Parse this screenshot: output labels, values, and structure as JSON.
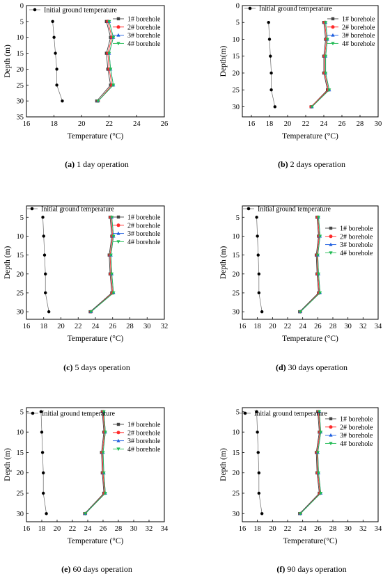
{
  "chart_data": [
    {
      "type": "line",
      "caption_label": "(a)",
      "caption_text": "1 day operation",
      "xlabel": "Temperature (°C)",
      "ylabel": "Depth (m)",
      "xlim": [
        16,
        26
      ],
      "ylim": [
        35,
        0
      ],
      "xticks": [
        16,
        18,
        20,
        22,
        24,
        26
      ],
      "yticks": [
        0,
        5,
        10,
        15,
        20,
        25,
        30,
        35
      ],
      "depths": [
        5,
        10,
        15,
        20,
        25,
        30
      ],
      "series": [
        {
          "name": "Initial ground temperature",
          "values": [
            17.9,
            18.0,
            18.1,
            18.2,
            18.2,
            18.6
          ]
        },
        {
          "name": "1# borehole",
          "values": [
            21.8,
            22.1,
            21.8,
            21.9,
            22.1,
            21.1
          ]
        },
        {
          "name": "2# borehole",
          "values": [
            21.9,
            22.2,
            21.9,
            22.0,
            22.2,
            21.2
          ]
        },
        {
          "name": "3# borehole",
          "values": [
            22.0,
            22.3,
            22.0,
            22.1,
            22.3,
            21.2
          ]
        },
        {
          "name": "4# borehole",
          "values": [
            22.0,
            22.3,
            22.0,
            22.1,
            22.3,
            21.2
          ]
        }
      ]
    },
    {
      "type": "line",
      "caption_label": "(b)",
      "caption_text": "2 days operation",
      "xlabel": "Temperature (°C)",
      "ylabel": "Depth(m)",
      "xlim": [
        15,
        30
      ],
      "ylim": [
        33,
        0
      ],
      "xticks": [
        16,
        18,
        20,
        22,
        24,
        26,
        28,
        30
      ],
      "yticks": [
        0,
        5,
        10,
        15,
        20,
        25,
        30
      ],
      "depths": [
        5,
        10,
        15,
        20,
        25,
        30
      ],
      "series": [
        {
          "name": "Initial ground temperature",
          "values": [
            17.9,
            18.0,
            18.1,
            18.2,
            18.2,
            18.6
          ]
        },
        {
          "name": "1# borehole",
          "values": [
            24.0,
            24.2,
            24.0,
            24.0,
            24.4,
            22.6
          ]
        },
        {
          "name": "2# borehole",
          "values": [
            24.1,
            24.3,
            24.1,
            24.1,
            24.5,
            22.6
          ]
        },
        {
          "name": "3# borehole",
          "values": [
            24.2,
            24.4,
            24.2,
            24.2,
            24.6,
            22.7
          ]
        },
        {
          "name": "4# borehole",
          "values": [
            24.2,
            24.4,
            24.2,
            24.2,
            24.6,
            22.7
          ]
        }
      ]
    },
    {
      "type": "line",
      "caption_label": "(c)",
      "caption_text": "5 days operation",
      "xlabel": "Temperature (°C)",
      "ylabel": "Depth (m)",
      "xlim": [
        16,
        32
      ],
      "ylim": [
        32,
        2
      ],
      "xticks": [
        16,
        18,
        20,
        22,
        24,
        26,
        28,
        30,
        32
      ],
      "yticks": [
        5,
        10,
        15,
        20,
        25,
        30
      ],
      "depths": [
        5,
        10,
        15,
        20,
        25,
        30
      ],
      "series": [
        {
          "name": "Initial ground temperature",
          "values": [
            17.9,
            18.0,
            18.1,
            18.2,
            18.2,
            18.6
          ]
        },
        {
          "name": "1# borehole",
          "values": [
            25.7,
            25.9,
            25.6,
            25.7,
            25.9,
            23.4
          ]
        },
        {
          "name": "2# borehole",
          "values": [
            25.8,
            26.0,
            25.7,
            25.8,
            26.0,
            23.5
          ]
        },
        {
          "name": "3# borehole",
          "values": [
            25.9,
            26.1,
            25.8,
            25.9,
            26.1,
            23.5
          ]
        },
        {
          "name": "4# borehole",
          "values": [
            25.9,
            26.1,
            25.8,
            25.9,
            26.1,
            23.5
          ]
        }
      ]
    },
    {
      "type": "line",
      "caption_label": "(d)",
      "caption_text": "30 days operation",
      "xlabel": "Temperature (°C)",
      "ylabel": "Depth (m)",
      "xlim": [
        16,
        34
      ],
      "ylim": [
        32,
        2
      ],
      "xticks": [
        16,
        18,
        20,
        22,
        24,
        26,
        28,
        30,
        32,
        34
      ],
      "yticks": [
        5,
        10,
        15,
        20,
        25,
        30
      ],
      "depths": [
        5,
        10,
        15,
        20,
        25,
        30
      ],
      "series": [
        {
          "name": "Initial ground temperature",
          "values": [
            17.9,
            18.0,
            18.1,
            18.2,
            18.2,
            18.6
          ]
        },
        {
          "name": "1# borehole",
          "values": [
            25.9,
            26.1,
            25.8,
            25.9,
            26.1,
            23.6
          ]
        },
        {
          "name": "2# borehole",
          "values": [
            26.0,
            26.2,
            25.9,
            26.0,
            26.2,
            23.7
          ]
        },
        {
          "name": "3# borehole",
          "values": [
            26.1,
            26.3,
            26.0,
            26.1,
            26.3,
            23.7
          ]
        },
        {
          "name": "4# borehole",
          "values": [
            26.1,
            26.3,
            26.0,
            26.1,
            26.3,
            23.7
          ]
        }
      ]
    },
    {
      "type": "line",
      "caption_label": "(e)",
      "caption_text": "60 days operation",
      "xlabel": "Temperature (°C)",
      "ylabel": "Depth (m)",
      "xlim": [
        16,
        34
      ],
      "ylim": [
        32,
        4
      ],
      "xticks": [
        16,
        18,
        20,
        22,
        24,
        26,
        28,
        30,
        32,
        34
      ],
      "yticks": [
        5,
        10,
        15,
        20,
        25,
        30
      ],
      "depths": [
        5,
        10,
        15,
        20,
        25,
        30
      ],
      "series": [
        {
          "name": "Initial ground temperature",
          "values": [
            17.9,
            18.0,
            18.1,
            18.2,
            18.2,
            18.6
          ]
        },
        {
          "name": "1# borehole",
          "values": [
            25.9,
            26.1,
            25.8,
            25.9,
            26.1,
            23.6
          ]
        },
        {
          "name": "2# borehole",
          "values": [
            26.0,
            26.2,
            25.9,
            26.0,
            26.2,
            23.7
          ]
        },
        {
          "name": "3# borehole",
          "values": [
            26.1,
            26.3,
            26.0,
            26.1,
            26.3,
            23.7
          ]
        },
        {
          "name": "4# borehole",
          "values": [
            26.1,
            26.3,
            26.0,
            26.1,
            26.3,
            23.7
          ]
        }
      ]
    },
    {
      "type": "line",
      "caption_label": "(f)",
      "caption_text": "90 days operation",
      "xlabel": "Temperature(°C)",
      "ylabel": "Depth (m)",
      "xlim": [
        16,
        34
      ],
      "ylim": [
        32,
        4
      ],
      "xticks": [
        16,
        18,
        20,
        22,
        24,
        26,
        28,
        30,
        32,
        34
      ],
      "yticks": [
        5,
        10,
        15,
        20,
        25,
        30
      ],
      "depths": [
        5,
        10,
        15,
        20,
        25,
        30
      ],
      "series": [
        {
          "name": "Initial ground temperature",
          "values": [
            17.9,
            18.0,
            18.1,
            18.2,
            18.2,
            18.6
          ]
        },
        {
          "name": "1# borehole",
          "values": [
            26.0,
            26.2,
            25.8,
            25.9,
            26.2,
            23.6
          ]
        },
        {
          "name": "2# borehole",
          "values": [
            26.1,
            26.3,
            25.9,
            26.0,
            26.3,
            23.7
          ]
        },
        {
          "name": "3# borehole",
          "values": [
            26.2,
            26.4,
            26.0,
            26.1,
            26.4,
            23.7
          ]
        },
        {
          "name": "4# borehole",
          "values": [
            26.2,
            26.4,
            26.0,
            26.1,
            26.4,
            23.7
          ]
        }
      ]
    }
  ],
  "style": {
    "series_colors": [
      "#000000",
      "#444444",
      "#ff2a2a",
      "#1f5fe0",
      "#22bb55"
    ],
    "series_markers": [
      "circle",
      "square",
      "circle",
      "triangle-up",
      "triangle-down"
    ]
  }
}
